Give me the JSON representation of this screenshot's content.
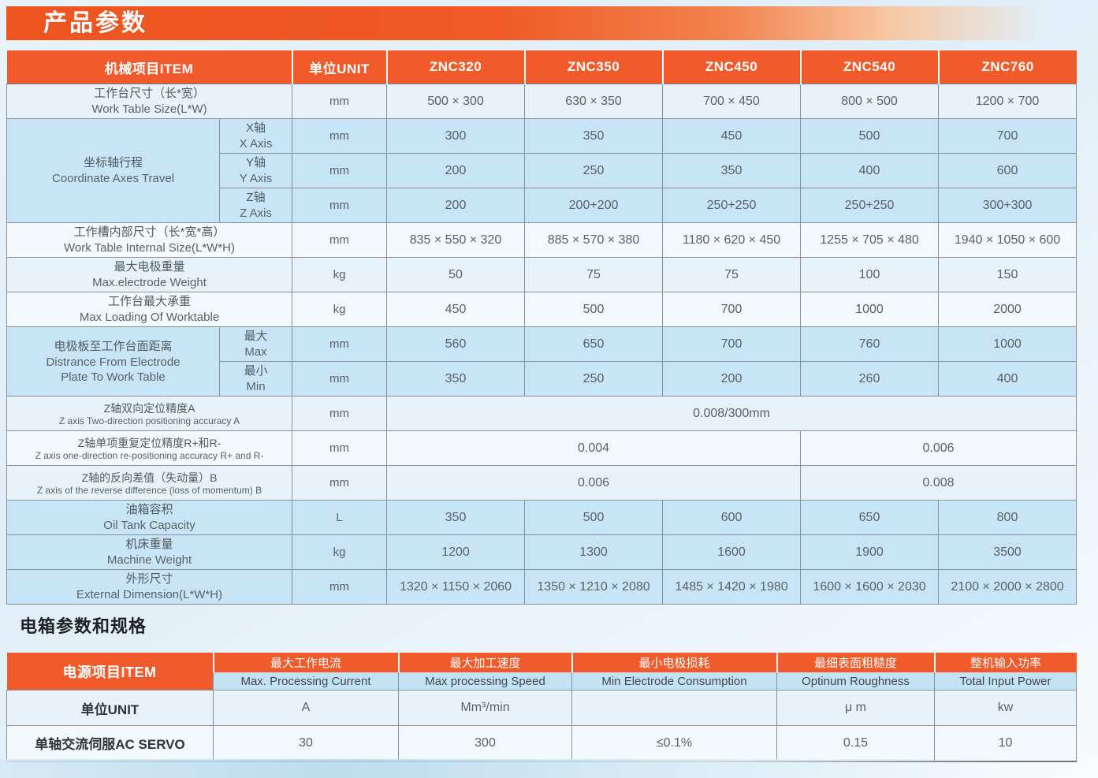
{
  "page": {
    "banner_title": "产品参数",
    "section2_title": "电箱参数和规格"
  },
  "colors": {
    "accent_orange": "#f15b2b",
    "row_blue": "#c7e5f6",
    "row_light": "#e7f2fa",
    "header_text": "#ffffff"
  },
  "machine_table": {
    "header": {
      "item": "机械项目ITEM",
      "unit": "单位UNIT",
      "models": [
        "ZNC320",
        "ZNC350",
        "ZNC450",
        "ZNC540",
        "ZNC760"
      ]
    },
    "rows": [
      {
        "zh": "工作台尺寸（长*宽）",
        "en": "Work Table Size(L*W)",
        "unit": "mm",
        "tone": "a",
        "values": [
          "500 × 300",
          "630 × 350",
          "700 × 450",
          "800 × 500",
          "1200 × 700"
        ]
      },
      {
        "zh": "坐标轴行程",
        "en": "Coordinate Axes Travel",
        "tone": "blue",
        "subrows": [
          {
            "zh": "X轴",
            "en": "X Axis",
            "unit": "mm",
            "values": [
              "300",
              "350",
              "450",
              "500",
              "700"
            ]
          },
          {
            "zh": "Y轴",
            "en": "Y Axis",
            "unit": "mm",
            "values": [
              "200",
              "250",
              "350",
              "400",
              "600"
            ]
          },
          {
            "zh": "Z轴",
            "en": "Z Axis",
            "unit": "mm",
            "values": [
              "200",
              "200+200",
              "250+250",
              "250+250",
              "300+300"
            ]
          }
        ]
      },
      {
        "zh": "工作槽内部尺寸（长*宽*高）",
        "en": "Work Table Internal Size(L*W*H)",
        "unit": "mm",
        "tone": "b",
        "values": [
          "835 × 550 × 320",
          "885 × 570 × 380",
          "1180 × 620 × 450",
          "1255 × 705 × 480",
          "1940 × 1050 × 600"
        ]
      },
      {
        "zh": "最大电极重量",
        "en": "Max.electrode Weight",
        "unit": "kg",
        "tone": "a",
        "values": [
          "50",
          "75",
          "75",
          "100",
          "150"
        ]
      },
      {
        "zh": "工作台最大承重",
        "en": "Max Loading Of Worktable",
        "unit": "kg",
        "tone": "b",
        "values": [
          "450",
          "500",
          "700",
          "1000",
          "2000"
        ]
      },
      {
        "zh": "电极板至工作台面距离",
        "en": "Distrance From Electrode\nPlate To Work Table",
        "tone": "blue",
        "subrows": [
          {
            "zh": "最大",
            "en": "Max",
            "unit": "mm",
            "values": [
              "560",
              "650",
              "700",
              "760",
              "1000"
            ]
          },
          {
            "zh": "最小",
            "en": "Min",
            "unit": "mm",
            "values": [
              "350",
              "250",
              "200",
              "260",
              "400"
            ]
          }
        ]
      },
      {
        "zh": "Z轴双向定位精度A",
        "en": "Z axis Two-direction positioning accuracy A",
        "unit": "mm",
        "tone": "a",
        "compact": true,
        "merged": [
          {
            "text": "0.008/300mm",
            "span": 5
          }
        ]
      },
      {
        "zh": "Z轴单项重复定位精度R+和R-",
        "en": "Z axis one-direction re-positioning accuracy R+ and R-",
        "unit": "mm",
        "tone": "b",
        "compact": true,
        "merged": [
          {
            "text": "0.004",
            "span": 3
          },
          {
            "text": "0.006",
            "span": 2
          }
        ]
      },
      {
        "zh": "Z轴的反向差值（失动量）B",
        "en": "Z axis of the reverse difference (loss of momentum) B",
        "unit": "mm",
        "tone": "a",
        "compact": true,
        "merged": [
          {
            "text": "0.006",
            "span": 3
          },
          {
            "text": "0.008",
            "span": 2
          }
        ]
      },
      {
        "zh": "油箱容积",
        "en": "Oil Tank Capacity",
        "unit": "L",
        "tone": "blue",
        "values": [
          "350",
          "500",
          "600",
          "650",
          "800"
        ]
      },
      {
        "zh": "机床重量",
        "en": "Machine Weight",
        "unit": "kg",
        "tone": "blue",
        "values": [
          "1200",
          "1300",
          "1600",
          "1900",
          "3500"
        ]
      },
      {
        "zh": "外形尺寸",
        "en": "External Dimension(L*W*H)",
        "unit": "mm",
        "tone": "blue",
        "values": [
          "1320 × 1150 × 2060",
          "1350 × 1210 × 2080",
          "1485 × 1420 × 1980",
          "1600 × 1600 × 2030",
          "2100 × 2000 × 2800"
        ]
      }
    ]
  },
  "power_table": {
    "header": {
      "item": "电源项目ITEM",
      "columns": [
        {
          "zh": "最大工作电流",
          "en": "Max. Processing Current"
        },
        {
          "zh": "最大加工速度",
          "en": "Max processing Speed"
        },
        {
          "zh": "最小电极损耗",
          "en": "Min Electrode Consumption"
        },
        {
          "zh": "最细表面粗糙度",
          "en": "Optinum Roughness"
        },
        {
          "zh": "整机输入功率",
          "en": "Total Input Power"
        }
      ]
    },
    "rows": [
      {
        "label": "单位UNIT",
        "tone": "a",
        "values": [
          "A",
          "Mm³/min",
          "",
          "μ m",
          "kw"
        ]
      },
      {
        "label": "单轴交流伺服AC SERVO",
        "tone": "b",
        "values": [
          "30",
          "300",
          "≤0.1%",
          "0.15",
          "10"
        ]
      }
    ]
  }
}
